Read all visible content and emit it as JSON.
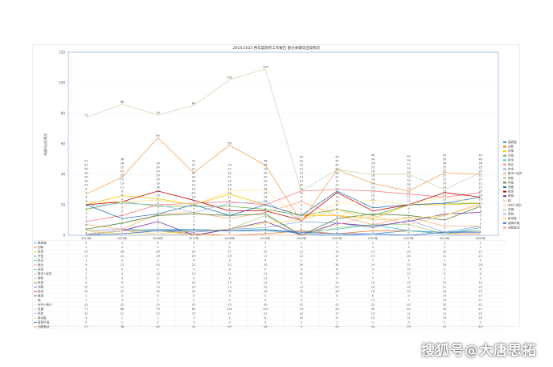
{
  "chart_data": {
    "type": "line",
    "title": "2014-2025 各年度政府工作报告 部分关键词出现频次",
    "ylabel": "关键词出现频次",
    "xlabel": "",
    "ylim": [
      0,
      120
    ],
    "yticks": [
      0,
      20,
      40,
      60,
      80,
      100,
      120
    ],
    "grid": true,
    "legend": "right",
    "categories": [
      "2014年",
      "2015年",
      "2016年",
      "2017年",
      "2018年",
      "2019年",
      "2020年",
      "2021年",
      "2022年",
      "2023年",
      "2024年",
      "2025年"
    ],
    "series": [
      {
        "name": "高质量",
        "color": "#5b9bd5",
        "values": [
          0,
          3,
          4,
          4,
          3,
          4,
          1,
          0,
          1,
          3,
          2,
          3
        ]
      },
      {
        "name": "创新",
        "color": "#ed7d31",
        "values": [
          1,
          3,
          3,
          1,
          0,
          1,
          3,
          1,
          3,
          3,
          1,
          1
        ]
      },
      {
        "name": "改革",
        "color": "#ffc000",
        "values": [
          20,
          26,
          24,
          20,
          27,
          20,
          13,
          13,
          11,
          20,
          20,
          21
        ]
      },
      {
        "name": "开放",
        "color": "#70ad47",
        "values": [
          17,
          22,
          19,
          19,
          19,
          17,
          13,
          17,
          13,
          20,
          21,
          21
        ]
      },
      {
        "name": "民生",
        "color": "#4bc4c4",
        "values": [
          1,
          3,
          3,
          4,
          3,
          4,
          2,
          4,
          7,
          3,
          1,
          5
        ]
      },
      {
        "name": "就业",
        "color": "#ff7c80",
        "values": [
          9,
          13,
          20,
          21,
          22,
          20,
          29,
          30,
          29,
          27,
          25,
          28
        ]
      },
      {
        "name": "安全",
        "color": "#8faadc",
        "values": [
          3,
          4,
          3,
          2,
          4,
          5,
          9,
          8,
          5,
          10,
          2,
          6
        ]
      },
      {
        "name": "数字+经济",
        "color": "#f4b183",
        "values": [
          7,
          4,
          14,
          15,
          11,
          15,
          22,
          13,
          7,
          12,
          6,
          6
        ]
      },
      {
        "name": "绿色",
        "color": "#a9d18e",
        "values": [
          0,
          3,
          3,
          0,
          4,
          13,
          0,
          5,
          7,
          7,
          1,
          3
        ]
      },
      {
        "name": "科技",
        "color": "#548235",
        "values": [
          4,
          8,
          13,
          14,
          13,
          14,
          0,
          11,
          14,
          13,
          10,
          19
        ]
      },
      {
        "name": "消费",
        "color": "#2e75b6",
        "values": [
          20,
          11,
          14,
          20,
          13,
          20,
          13,
          29,
          18,
          20,
          21,
          25
        ]
      },
      {
        "name": "投资",
        "color": "#c00000",
        "values": [
          20,
          22,
          29,
          23,
          16,
          16,
          10,
          28,
          16,
          20,
          28,
          25
        ]
      },
      {
        "name": "教育",
        "color": "#7030a0",
        "values": [
          1,
          3,
          9,
          0,
          4,
          9,
          0,
          8,
          6,
          9,
          14,
          15
        ]
      },
      {
        "name": "稳",
        "color": "#f8cbad",
        "values": [
          1,
          3,
          1,
          0,
          0,
          0,
          0,
          7,
          13,
          7,
          13,
          21
        ]
      },
      {
        "name": "乡村+振兴",
        "color": "#ffe699",
        "values": [
          22,
          22,
          23,
          20,
          29,
          30,
          10,
          21,
          23,
          20,
          25,
          21
        ]
      },
      {
        "name": "发展",
        "color": "#c5e0b4",
        "values": [
          77,
          86,
          79,
          85,
          102,
          109,
          29,
          43,
          40,
          40,
          30,
          41
        ]
      },
      {
        "name": "风险",
        "color": "#9dc3e6",
        "values": [
          19,
          21,
          20,
          15,
          21,
          22,
          10,
          17,
          10,
          11,
          13,
          20
        ]
      },
      {
        "name": "新动能",
        "color": "#ffd966",
        "values": [
          3,
          1,
          1,
          3,
          4,
          8,
          10,
          17,
          10,
          11,
          13,
          20
        ]
      },
      {
        "name": "营商环境",
        "color": "#4472c4",
        "values": [
          0,
          1,
          3,
          3,
          3,
          3,
          2,
          1,
          1,
          0,
          2,
          2
        ]
      },
      {
        "name": "创新驱动",
        "color": "#f4a460",
        "values": [
          27,
          38,
          64,
          41,
          59,
          46,
          9,
          43,
          34,
          29,
          41,
          40
        ]
      }
    ]
  },
  "watermark": "搜狐号@大唐思拓"
}
